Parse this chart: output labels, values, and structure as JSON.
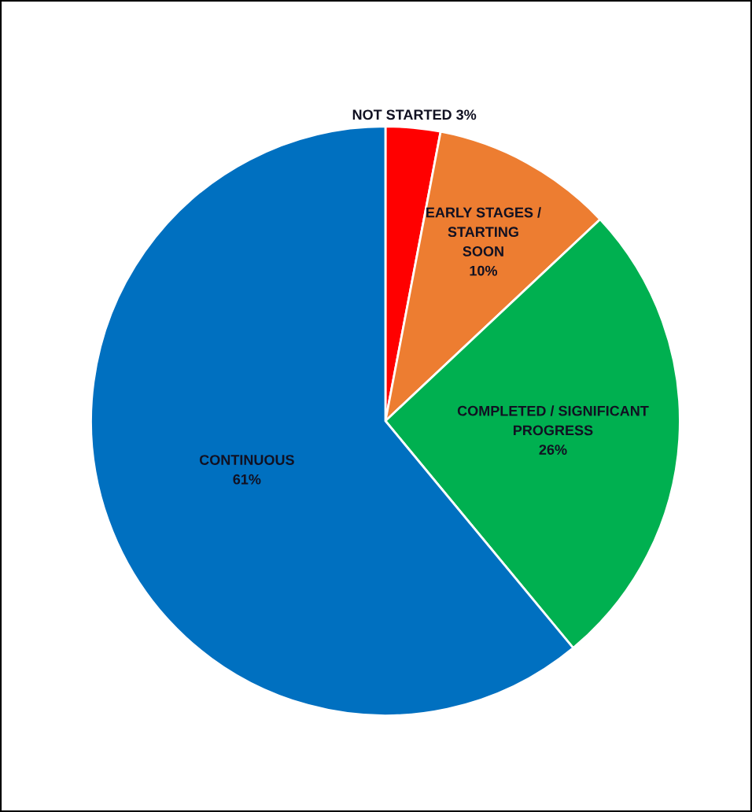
{
  "chart_data": {
    "type": "pie",
    "categories": [
      "NOT STARTED",
      "EARLY STAGES /\nSTARTING\nSOON",
      "COMPLETED / SIGNIFICANT\nPROGRESS",
      "CONTINUOUS"
    ],
    "values": [
      3,
      10,
      26,
      61
    ],
    "value_labels": [
      "3%",
      "10%",
      "26%",
      "61%"
    ],
    "colors": [
      "#ff0000",
      "#ed7d31",
      "#00b050",
      "#0070c0"
    ]
  }
}
